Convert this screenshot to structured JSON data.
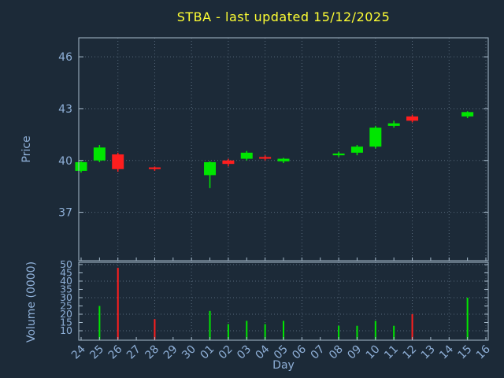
{
  "title": "STBA - last updated 15/12/2025",
  "colors": {
    "background": "#1c2a38",
    "axis_line": "#a8bccd",
    "tick_text": "#8fb0d8",
    "grid": "#56687a",
    "title": "#ffff33",
    "up": "#00e600",
    "down": "#ff1e1e"
  },
  "chart_data": [
    {
      "type": "candlestick",
      "title": "STBA - last updated 15/12/2025",
      "xlabel": "Day",
      "ylabel": "Price",
      "ylim": [
        34.2,
        47.1
      ],
      "yticks": [
        37,
        40,
        43,
        46
      ],
      "grid": true,
      "categories": [
        "24",
        "25",
        "26",
        "27",
        "28",
        "29",
        "30",
        "01",
        "02",
        "03",
        "04",
        "05",
        "06",
        "07",
        "08",
        "09",
        "10",
        "11",
        "12",
        "13",
        "14",
        "15",
        "16"
      ],
      "candles": [
        {
          "day": "24",
          "open": 39.4,
          "high": 39.95,
          "low": 39.3,
          "close": 39.9
        },
        {
          "day": "25",
          "open": 40.0,
          "high": 40.9,
          "low": 39.9,
          "close": 40.75
        },
        {
          "day": "26",
          "open": 40.35,
          "high": 40.45,
          "low": 39.35,
          "close": 39.5
        },
        {
          "day": "28",
          "open": 39.6,
          "high": 39.65,
          "low": 39.4,
          "close": 39.5
        },
        {
          "day": "01",
          "open": 39.15,
          "high": 39.95,
          "low": 38.4,
          "close": 39.9
        },
        {
          "day": "02",
          "open": 40.0,
          "high": 40.1,
          "low": 39.65,
          "close": 39.8
        },
        {
          "day": "03",
          "open": 40.1,
          "high": 40.55,
          "low": 40.0,
          "close": 40.45
        },
        {
          "day": "04",
          "open": 40.2,
          "high": 40.3,
          "low": 40.0,
          "close": 40.1
        },
        {
          "day": "05",
          "open": 39.95,
          "high": 40.15,
          "low": 39.85,
          "close": 40.1
        },
        {
          "day": "08",
          "open": 40.3,
          "high": 40.5,
          "low": 40.2,
          "close": 40.4
        },
        {
          "day": "09",
          "open": 40.45,
          "high": 40.9,
          "low": 40.3,
          "close": 40.8
        },
        {
          "day": "10",
          "open": 40.8,
          "high": 42.0,
          "low": 40.7,
          "close": 41.9
        },
        {
          "day": "11",
          "open": 42.0,
          "high": 42.3,
          "low": 41.9,
          "close": 42.15
        },
        {
          "day": "12",
          "open": 42.55,
          "high": 42.65,
          "low": 42.2,
          "close": 42.3
        },
        {
          "day": "15",
          "open": 42.55,
          "high": 42.85,
          "low": 42.45,
          "close": 42.8
        }
      ]
    },
    {
      "type": "bar",
      "ylabel": "Volume (0000)",
      "ylim": [
        4.3,
        51.4
      ],
      "yticks": [
        10,
        15,
        20,
        25,
        30,
        35,
        40,
        45,
        50
      ],
      "grid_yticks": [
        10,
        20,
        30,
        40,
        50
      ],
      "bars": [
        {
          "day": "25",
          "value": 25,
          "direction": "up"
        },
        {
          "day": "26",
          "value": 48,
          "direction": "down"
        },
        {
          "day": "28",
          "value": 17,
          "direction": "down"
        },
        {
          "day": "01",
          "value": 22,
          "direction": "up"
        },
        {
          "day": "02",
          "value": 14,
          "direction": "up"
        },
        {
          "day": "03",
          "value": 16,
          "direction": "up"
        },
        {
          "day": "04",
          "value": 14,
          "direction": "up"
        },
        {
          "day": "05",
          "value": 16,
          "direction": "up"
        },
        {
          "day": "08",
          "value": 13,
          "direction": "up"
        },
        {
          "day": "09",
          "value": 13,
          "direction": "up"
        },
        {
          "day": "10",
          "value": 16,
          "direction": "up"
        },
        {
          "day": "11",
          "value": 13,
          "direction": "up"
        },
        {
          "day": "12",
          "value": 20,
          "direction": "down"
        },
        {
          "day": "15",
          "value": 30,
          "direction": "up"
        }
      ]
    }
  ]
}
